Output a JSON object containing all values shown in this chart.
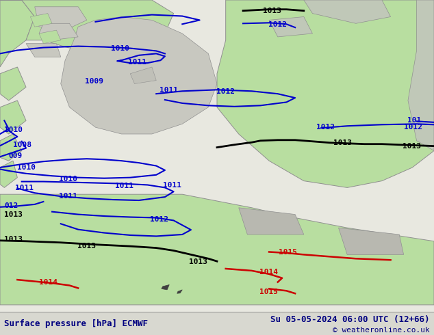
{
  "title_left": "Surface pressure [hPa] ECMWF",
  "title_right": "Su 05-05-2024 06:00 UTC (12+66)",
  "copyright": "© weatheronline.co.uk",
  "bg_color": "#e8e8e0",
  "land_green": "#b8dea0",
  "land_grey": "#c8c8c0",
  "water_color": "#dce8f0",
  "coast_color": "#909090",
  "isobar_blue": "#0000cc",
  "isobar_black": "#000000",
  "isobar_red": "#cc0000",
  "bottom_bar_color": "#d8d8d0",
  "bottom_text_color": "#000080",
  "font_size_bottom": 9,
  "figwidth": 6.34,
  "figheight": 4.9,
  "dpi": 100,
  "isobar_lw_blue": 1.5,
  "isobar_lw_black": 2.0,
  "isobar_lw_red": 1.8
}
